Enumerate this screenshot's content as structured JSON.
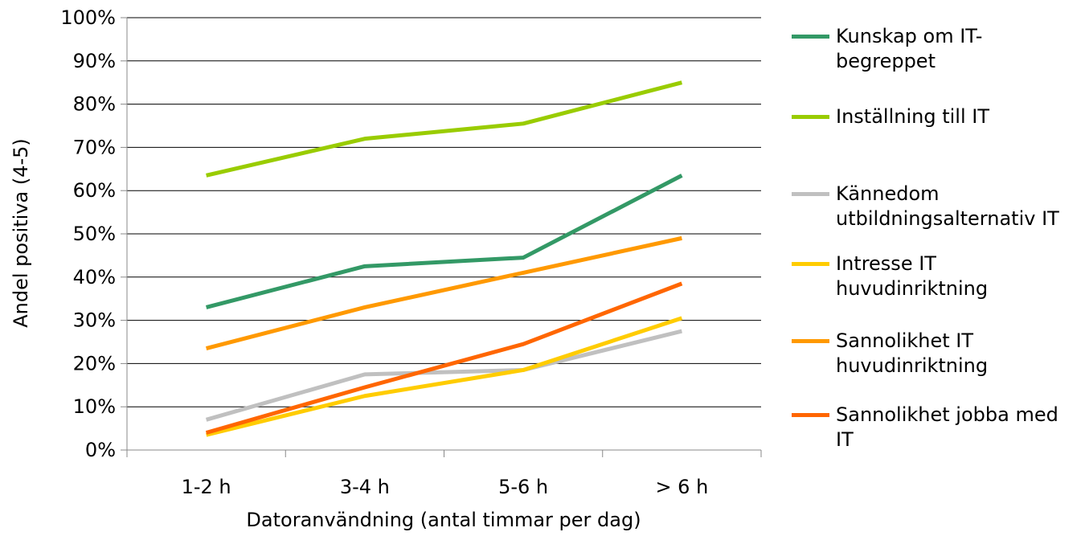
{
  "chart_data": {
    "type": "line",
    "categories": [
      "1-2 h",
      "3-4 h",
      "5-6 h",
      "> 6 h"
    ],
    "xlabel": "Datoranvändning (antal timmar per dag)",
    "ylabel": "Andel positiva (4-5)",
    "ylim": [
      0,
      100
    ],
    "yticks": [
      "0%",
      "10%",
      "20%",
      "30%",
      "40%",
      "50%",
      "60%",
      "70%",
      "80%",
      "90%",
      "100%"
    ],
    "grid": true,
    "legend_position": "right",
    "series": [
      {
        "name": "Kunskap om IT-\nbegreppet",
        "color": "#339966",
        "values": [
          33,
          42.5,
          44.5,
          63.5
        ]
      },
      {
        "name": "Inställning till IT",
        "color": "#99cc00",
        "values": [
          63.5,
          72,
          75.5,
          85
        ]
      },
      {
        "name": "Kännedom\nutbildningsalternativ IT",
        "color": "#c0c0c0",
        "values": [
          7,
          17.5,
          18.5,
          27.5
        ]
      },
      {
        "name": "Intresse IT\nhuvudinriktning",
        "color": "#ffcc00",
        "values": [
          3.5,
          12.5,
          18.5,
          30.5
        ]
      },
      {
        "name": "Sannolikhet IT\nhuvudinriktning",
        "color": "#ff9900",
        "values": [
          23.5,
          33,
          41,
          49
        ]
      },
      {
        "name": "Sannolikhet jobba med\nIT",
        "color": "#ff6600",
        "values": [
          4,
          14.5,
          24.5,
          38.5
        ]
      }
    ]
  }
}
